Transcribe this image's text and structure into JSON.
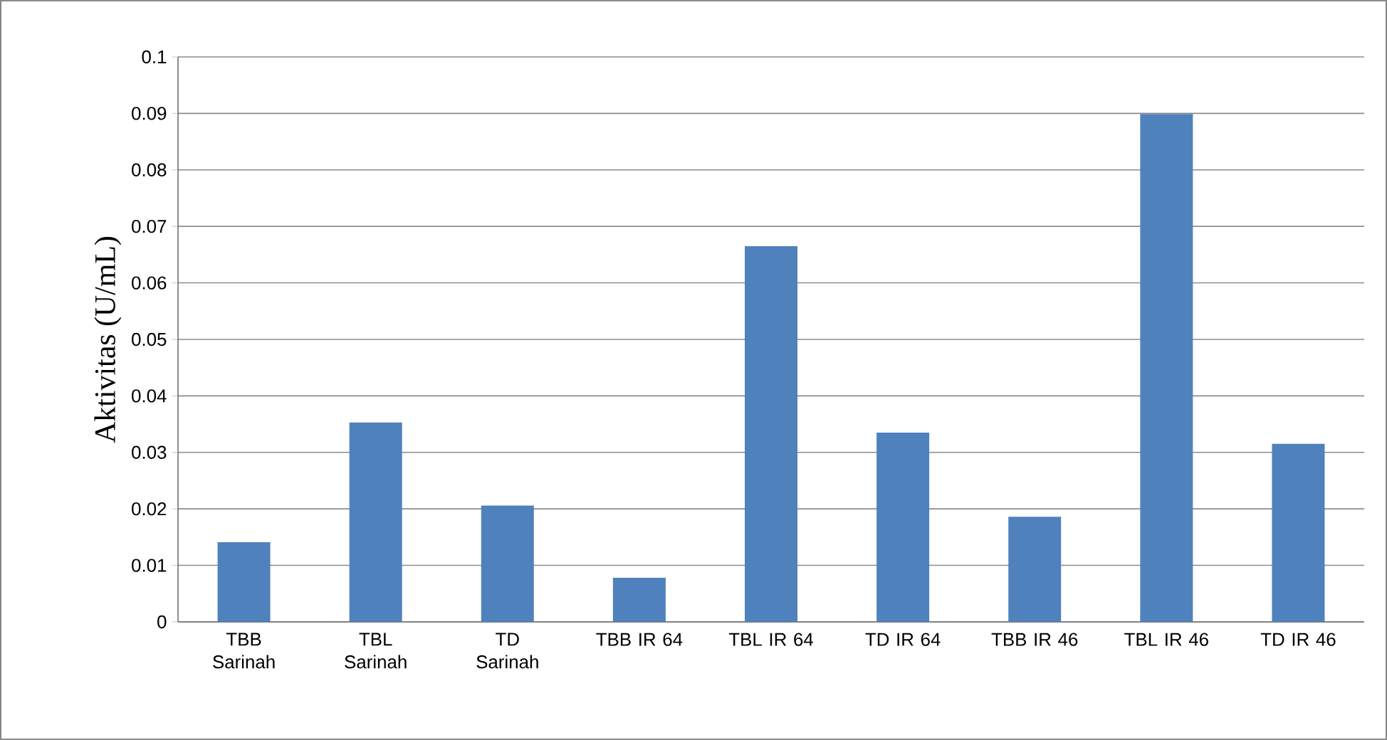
{
  "chart_data": {
    "type": "bar",
    "ylabel": "Aktivitas (U/mL)",
    "categories": [
      "TBB Sarinah",
      "TBL Sarinah",
      "TD Sarinah",
      "TBB IR 64",
      "TBL IR 64",
      "TD IR 64",
      "TBB IR 46",
      "TBL IR 46",
      "TD IR 46"
    ],
    "values": [
      0.0141,
      0.0353,
      0.0206,
      0.0078,
      0.0665,
      0.0335,
      0.0186,
      0.0899,
      0.0315
    ],
    "color": "#4f81bd",
    "ylim": [
      0,
      0.1
    ],
    "yticks": [
      0,
      0.01,
      0.02,
      0.03,
      0.04,
      0.05,
      0.06,
      0.07,
      0.08,
      0.09,
      0.1
    ],
    "grid": "y"
  }
}
